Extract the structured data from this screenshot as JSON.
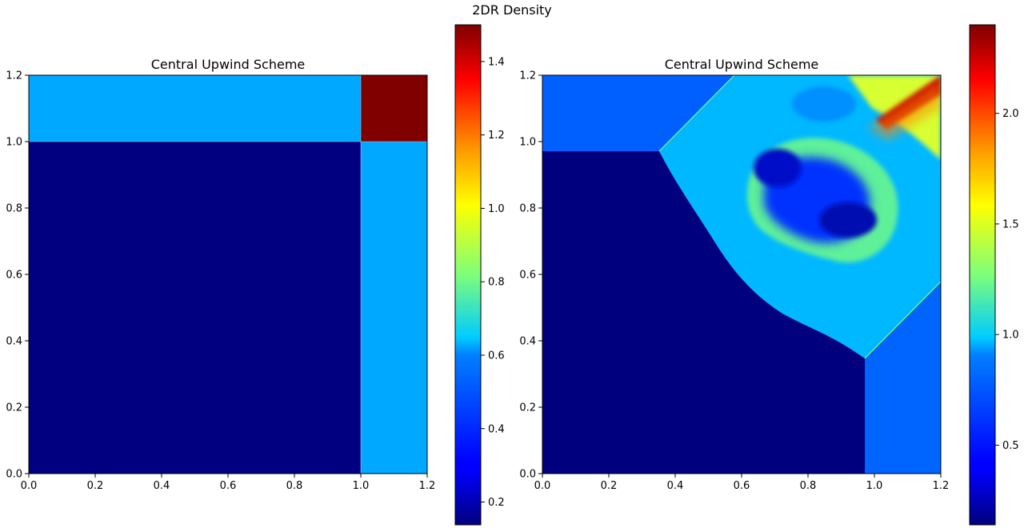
{
  "figure": {
    "suptitle": "2DR Density"
  },
  "chart_data": [
    {
      "type": "heatmap",
      "title": "Central Upwind Scheme",
      "xlabel": "",
      "ylabel": "",
      "xlim": [
        0.0,
        1.2
      ],
      "ylim": [
        0.0,
        1.2
      ],
      "xticks": [
        "0.0",
        "0.2",
        "0.4",
        "0.6",
        "0.8",
        "1.0",
        "1.2"
      ],
      "yticks": [
        "0.0",
        "0.2",
        "0.4",
        "0.6",
        "0.8",
        "1.0",
        "1.2"
      ],
      "colormap": "jet",
      "colorbar": {
        "range": [
          0.138,
          1.5
        ],
        "ticks": [
          0.2,
          0.4,
          0.6,
          0.8,
          1.0,
          1.2,
          1.4
        ],
        "tick_labels": [
          "0.2",
          "0.4",
          "0.6",
          "0.8",
          "1.0",
          "1.2",
          "1.4"
        ]
      },
      "regions": [
        {
          "name": "lower-left",
          "x": [
            0.0,
            1.0
          ],
          "y": [
            0.0,
            1.0
          ],
          "value": 0.138
        },
        {
          "name": "upper-left",
          "x": [
            0.0,
            1.0
          ],
          "y": [
            1.0,
            1.2
          ],
          "value": 0.5323
        },
        {
          "name": "lower-right",
          "x": [
            1.0,
            1.2
          ],
          "y": [
            0.0,
            1.0
          ],
          "value": 0.5323
        },
        {
          "name": "upper-right",
          "x": [
            1.0,
            1.2
          ],
          "y": [
            1.0,
            1.2
          ],
          "value": 1.5
        }
      ]
    },
    {
      "type": "heatmap",
      "title": "Central Upwind Scheme",
      "xlabel": "",
      "ylabel": "",
      "xlim": [
        0.0,
        1.2
      ],
      "ylim": [
        0.0,
        1.2
      ],
      "xticks": [
        "0.0",
        "0.2",
        "0.4",
        "0.6",
        "0.8",
        "1.0",
        "1.2"
      ],
      "yticks": [
        "0.0",
        "0.2",
        "0.4",
        "0.6",
        "0.8",
        "1.0",
        "1.2"
      ],
      "colormap": "jet",
      "colorbar": {
        "range": [
          0.14,
          2.4
        ],
        "ticks": [
          0.5,
          1.0,
          1.5,
          2.0
        ],
        "tick_labels": [
          "0.5",
          "1.0",
          "1.5",
          "2.0"
        ]
      },
      "regions": [
        {
          "name": "background",
          "value": 0.14
        },
        {
          "name": "upper-left-state",
          "value": 0.55
        },
        {
          "name": "lower-right-state",
          "value": 0.55
        },
        {
          "name": "jet-region-base",
          "value": 0.98
        },
        {
          "name": "mushroom-outer-ring",
          "value": 1.28
        },
        {
          "name": "mushroom-inner-core",
          "value": 0.36
        },
        {
          "name": "upper-right-hot-jet",
          "value": 2.4
        }
      ]
    }
  ]
}
